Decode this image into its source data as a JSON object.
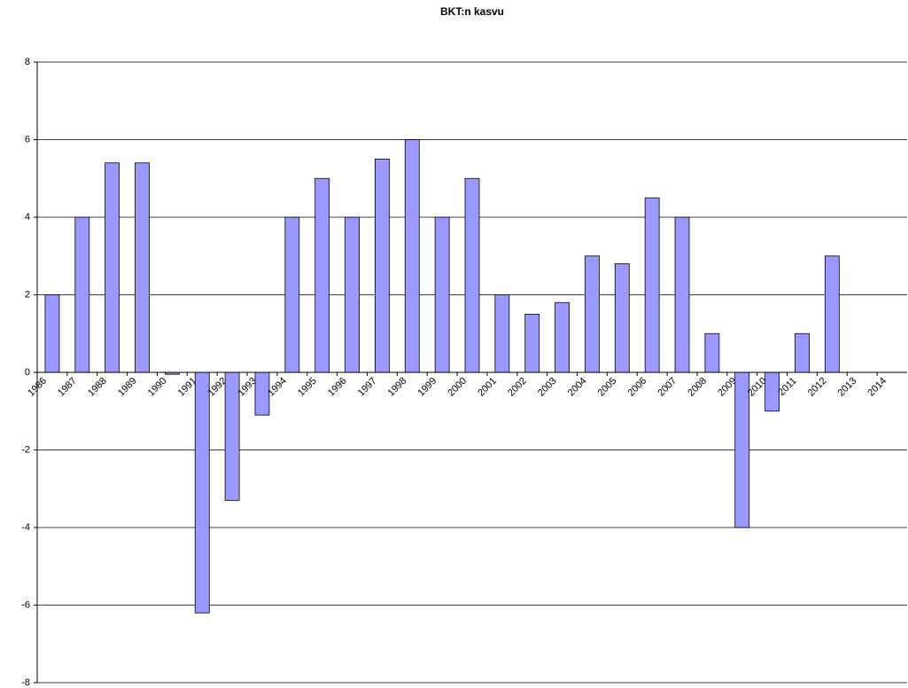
{
  "chart_data": {
    "type": "bar",
    "title": "BKT:n kasvu",
    "categories": [
      "1986",
      "1987",
      "1988",
      "1989",
      "1990",
      "1991",
      "1992",
      "1993",
      "1994",
      "1995",
      "1996",
      "1997",
      "1998",
      "1999",
      "2000",
      "2001",
      "2002",
      "2003",
      "2004",
      "2005",
      "2006",
      "2007",
      "2008",
      "2009",
      "2010",
      "2011",
      "2012",
      "2013",
      "2014"
    ],
    "values": [
      2,
      4,
      5.4,
      5.4,
      -0.05,
      -6.2,
      -3.3,
      -1.1,
      4,
      5,
      4,
      5.5,
      6,
      4,
      5,
      2,
      1.5,
      1.8,
      3,
      2.8,
      4.5,
      4,
      1,
      -4,
      -1,
      1,
      3,
      null,
      null
    ],
    "color": "#9999ff",
    "ylim": [
      -8,
      8
    ],
    "yticks": [
      -8,
      -6,
      -4,
      -2,
      0,
      2,
      4,
      6,
      8
    ],
    "grid": true
  }
}
